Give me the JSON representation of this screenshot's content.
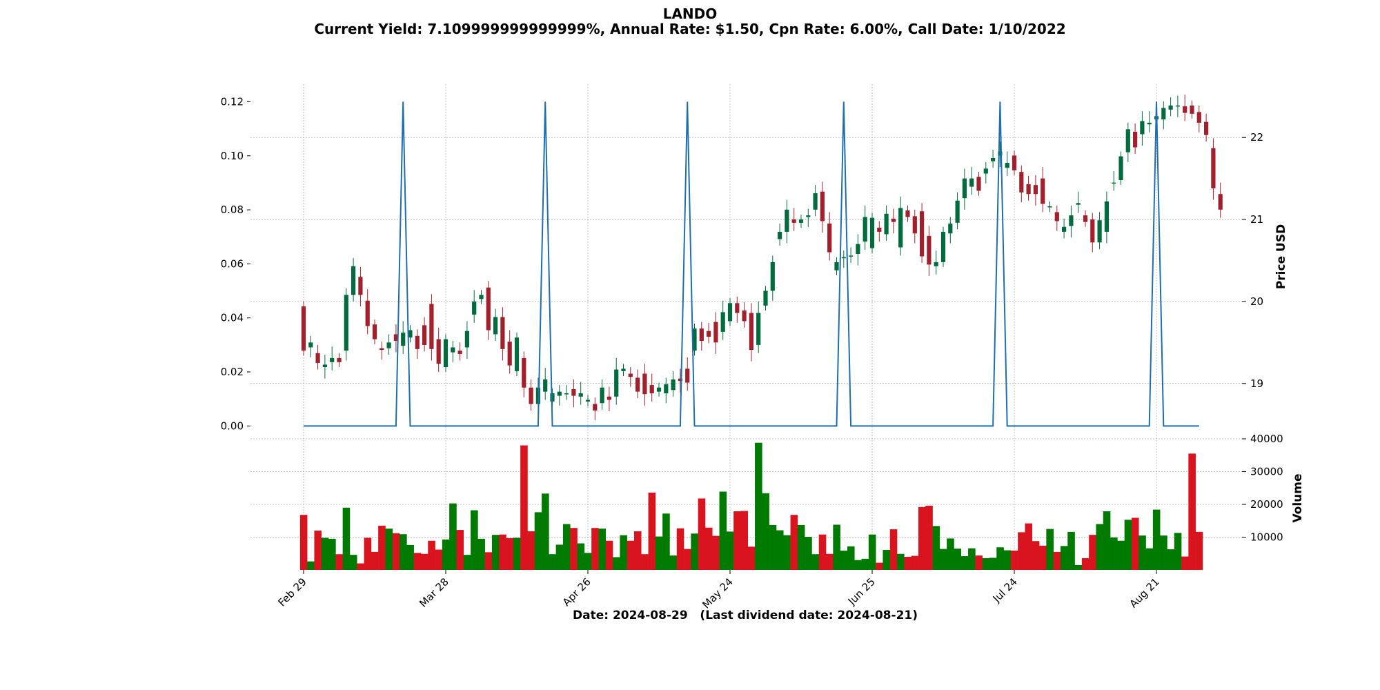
{
  "title": "LANDO",
  "subtitle": "Current Yield: 7.109999999999999%, Annual Rate: $1.50, Cpn Rate: 6.00%, Call Date: 1/10/2022",
  "xlabel": "Date: 2024-08-29   (Last dividend date: 2024-08-21)",
  "chart_data": {
    "type": "candlestick",
    "title": "LANDO",
    "subtitle": "Current Yield: 7.109999999999999%, Annual Rate: $1.50, Cpn Rate: 6.00%, Call Date: 1/10/2022",
    "xlabel": "Date: 2024-08-29   (Last dividend date: 2024-08-21)",
    "x_ticks": [
      "Feb 29",
      "Mar 28",
      "Apr 26",
      "May 24",
      "Jun 25",
      "Jul 24",
      "Aug 21"
    ],
    "x_tick_index": [
      0,
      20,
      40,
      60,
      80,
      100,
      120
    ],
    "price_axis": {
      "label": "Price USD",
      "ticks": [
        19,
        20,
        21,
        22
      ],
      "ylim": [
        18.35,
        22.65
      ]
    },
    "dividend_axis": {
      "ticks": [
        "0.00",
        "0.02",
        "0.04",
        "0.06",
        "0.08",
        "0.10",
        "0.12"
      ],
      "ylim": [
        -0.004,
        0.1265
      ]
    },
    "volume_axis": {
      "label": "Volume",
      "ticks": [
        10000,
        20000,
        30000,
        40000
      ],
      "tick_labels": [
        "10000",
        "20000",
        "30000",
        "40000"
      ],
      "ylim": [
        0,
        40000
      ]
    },
    "grid": true,
    "colors": {
      "up": "#006b3c",
      "down": "#a31f2b",
      "vol_up": "#007a00",
      "vol_down": "#d9141e",
      "dividend_line": "#1f6fae",
      "grid": "#b0b0b0"
    },
    "candles": [
      [
        19.94,
        19.4
      ],
      [
        19.44,
        19.5
      ],
      [
        19.37,
        19.25
      ],
      [
        19.2,
        19.23
      ],
      [
        19.26,
        19.31
      ],
      [
        19.31,
        19.26
      ],
      [
        19.4,
        20.08
      ],
      [
        20.08,
        20.43
      ],
      [
        20.3,
        20.08
      ],
      [
        20.01,
        19.7
      ],
      [
        19.72,
        19.54
      ],
      [
        19.43,
        19.41
      ],
      [
        19.43,
        19.5
      ],
      [
        19.6,
        19.52
      ],
      [
        19.46,
        19.62
      ],
      [
        19.56,
        19.65
      ],
      [
        19.58,
        19.42
      ],
      [
        19.71,
        19.47
      ],
      [
        19.97,
        19.42
      ],
      [
        19.54,
        19.24
      ],
      [
        19.2,
        19.54
      ],
      [
        19.38,
        19.44
      ],
      [
        19.4,
        19.36
      ],
      [
        19.44,
        19.64
      ],
      [
        19.84,
        20.0
      ],
      [
        20.03,
        20.08
      ],
      [
        20.17,
        19.65
      ],
      [
        19.6,
        19.81
      ],
      [
        19.81,
        19.42
      ],
      [
        19.51,
        19.22
      ],
      [
        19.15,
        19.56
      ],
      [
        19.31,
        18.95
      ],
      [
        18.95,
        18.75
      ],
      [
        18.75,
        18.95
      ],
      [
        18.9,
        19.05
      ],
      [
        18.78,
        18.88
      ],
      [
        18.85,
        18.9
      ],
      [
        18.88,
        18.88
      ],
      [
        18.93,
        18.85
      ],
      [
        18.84,
        18.88
      ],
      [
        18.78,
        18.8
      ],
      [
        18.75,
        18.67
      ],
      [
        18.76,
        18.95
      ],
      [
        18.84,
        18.8
      ],
      [
        18.84,
        19.17
      ],
      [
        19.15,
        19.18
      ],
      [
        19.12,
        19.08
      ],
      [
        19.07,
        18.9
      ],
      [
        19.12,
        18.87
      ],
      [
        18.98,
        18.88
      ],
      [
        18.9,
        18.95
      ],
      [
        18.88,
        18.99
      ],
      [
        18.92,
        19.05
      ],
      [
        19.06,
        19.03
      ],
      [
        19.18,
        19.01
      ],
      [
        19.4,
        19.67
      ],
      [
        19.67,
        19.52
      ],
      [
        19.64,
        19.57
      ],
      [
        19.75,
        19.5
      ],
      [
        19.63,
        19.87
      ],
      [
        19.76,
        19.98
      ],
      [
        19.98,
        19.86
      ],
      [
        19.89,
        19.76
      ],
      [
        19.86,
        19.41
      ],
      [
        19.47,
        19.86
      ],
      [
        19.95,
        20.13
      ],
      [
        20.13,
        20.48
      ],
      [
        20.76,
        20.85
      ],
      [
        20.85,
        21.12
      ],
      [
        21.0,
        20.96
      ],
      [
        20.96,
        21.0
      ],
      [
        21.03,
        21.05
      ],
      [
        21.12,
        21.32
      ],
      [
        21.34,
        20.98
      ],
      [
        20.95,
        20.6
      ],
      [
        20.38,
        20.48
      ],
      [
        20.53,
        20.54
      ],
      [
        20.55,
        20.56
      ],
      [
        20.58,
        20.7
      ],
      [
        20.73,
        21.03
      ],
      [
        20.65,
        21.02
      ],
      [
        20.9,
        20.85
      ],
      [
        20.82,
        21.07
      ],
      [
        21.01,
        20.97
      ],
      [
        20.66,
        21.14
      ],
      [
        21.11,
        21.03
      ],
      [
        21.04,
        20.83
      ],
      [
        21.1,
        20.55
      ],
      [
        20.8,
        20.45
      ],
      [
        20.43,
        20.48
      ],
      [
        20.48,
        20.85
      ],
      [
        20.83,
        20.95
      ],
      [
        20.96,
        21.23
      ],
      [
        21.26,
        21.5
      ],
      [
        21.4,
        21.5
      ],
      [
        21.52,
        21.35
      ],
      [
        21.56,
        21.62
      ],
      [
        21.71,
        21.75
      ],
      [
        21.78,
        21.83
      ],
      [
        21.63,
        21.69
      ],
      [
        21.78,
        21.6
      ],
      [
        21.58,
        21.33
      ],
      [
        21.43,
        21.31
      ],
      [
        21.42,
        21.31
      ],
      [
        21.5,
        21.19
      ],
      [
        21.15,
        21.16
      ],
      [
        21.09,
        20.98
      ],
      [
        20.85,
        20.91
      ],
      [
        20.92,
        21.05
      ],
      [
        21.18,
        21.2
      ],
      [
        21.05,
        20.97
      ],
      [
        21.0,
        20.72
      ],
      [
        20.72,
        20.99
      ],
      [
        20.85,
        21.22
      ],
      [
        21.45,
        21.45
      ],
      [
        21.48,
        21.77
      ],
      [
        21.82,
        22.1
      ],
      [
        22.07,
        21.88
      ],
      [
        22.04,
        22.2
      ],
      [
        22.16,
        22.18
      ],
      [
        22.22,
        22.26
      ],
      [
        22.22,
        22.36
      ],
      [
        22.34,
        22.39
      ],
      [
        22.39,
        22.39
      ],
      [
        22.38,
        22.3
      ],
      [
        22.39,
        22.29
      ],
      [
        22.31,
        22.18
      ],
      [
        22.19,
        22.03
      ],
      [
        21.87,
        21.38
      ],
      [
        21.31,
        21.12
      ]
    ],
    "volume": [
      16800,
      2600,
      12000,
      9800,
      9500,
      4800,
      19000,
      4600,
      2000,
      9800,
      5500,
      13500,
      12600,
      11200,
      10900,
      7600,
      5200,
      4900,
      8900,
      6200,
      9300,
      20300,
      12200,
      4600,
      18200,
      9500,
      5400,
      10700,
      10800,
      9700,
      9800,
      38000,
      11800,
      17600,
      23300,
      4800,
      7700,
      14000,
      12800,
      8100,
      5200,
      12800,
      12600,
      8900,
      3900,
      10600,
      8900,
      11800,
      4800,
      23600,
      10200,
      17200,
      4400,
      12700,
      6400,
      11100,
      21800,
      12900,
      10400,
      23900,
      11700,
      17900,
      18000,
      7100,
      38800,
      23400,
      13700,
      12100,
      10600,
      16800,
      13700,
      10100,
      4800,
      10800,
      4900,
      13800,
      5900,
      7200,
      3000,
      3400,
      10800,
      2200,
      6100,
      12400,
      4900,
      4000,
      4300,
      19200,
      19600,
      13400,
      6400,
      9600,
      6500,
      4200,
      6600,
      4400,
      3600,
      3700,
      6900,
      6000,
      5900,
      11500,
      14200,
      8800,
      7400,
      12500,
      5500,
      7300,
      11600,
      1500,
      3600,
      10700,
      14000,
      17900,
      9900,
      8900,
      15300,
      15900,
      10500,
      6600,
      18400,
      10500,
      6300,
      11300,
      4100,
      35500,
      11600
    ],
    "dividend": [
      0,
      0,
      0,
      0,
      0,
      0,
      0,
      0,
      0,
      0,
      0,
      0,
      0,
      0,
      0.12,
      0,
      0,
      0,
      0,
      0,
      0,
      0,
      0,
      0,
      0,
      0,
      0,
      0,
      0,
      0,
      0,
      0,
      0,
      0,
      0.12,
      0,
      0,
      0,
      0,
      0,
      0,
      0,
      0,
      0,
      0,
      0,
      0,
      0,
      0,
      0,
      0,
      0,
      0,
      0,
      0.12,
      0,
      0,
      0,
      0,
      0,
      0,
      0,
      0,
      0,
      0,
      0,
      0,
      0,
      0,
      0,
      0,
      0,
      0,
      0,
      0,
      0,
      0.12,
      0,
      0,
      0,
      0,
      0,
      0,
      0,
      0,
      0,
      0,
      0,
      0,
      0,
      0,
      0,
      0,
      0,
      0,
      0,
      0,
      0,
      0.12,
      0,
      0,
      0,
      0,
      0,
      0,
      0,
      0,
      0,
      0,
      0,
      0,
      0,
      0,
      0,
      0,
      0,
      0,
      0,
      0,
      0,
      0.12,
      0,
      0,
      0,
      0,
      0,
      0
    ]
  }
}
